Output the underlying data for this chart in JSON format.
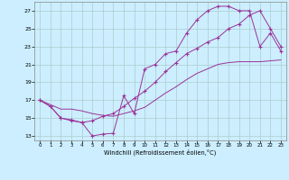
{
  "xlabel": "Windchill (Refroidissement éolien,°C)",
  "bg_color": "#cceeff",
  "grid_color": "#aacccc",
  "line_color": "#993399",
  "xlim": [
    -0.5,
    23.5
  ],
  "ylim": [
    12.5,
    28.0
  ],
  "xticks": [
    0,
    1,
    2,
    3,
    4,
    5,
    6,
    7,
    8,
    9,
    10,
    11,
    12,
    13,
    14,
    15,
    16,
    17,
    18,
    19,
    20,
    21,
    22,
    23
  ],
  "yticks": [
    13,
    15,
    17,
    19,
    21,
    23,
    25,
    27
  ],
  "series1_x": [
    0,
    1,
    2,
    3,
    4,
    5,
    6,
    7,
    8,
    9,
    10,
    11,
    12,
    13,
    14,
    15,
    16,
    17,
    18,
    19,
    20,
    21,
    22,
    23
  ],
  "series1_y": [
    17.0,
    16.3,
    15.0,
    14.8,
    14.5,
    13.0,
    13.2,
    13.3,
    17.5,
    15.5,
    20.5,
    21.0,
    22.2,
    22.5,
    24.5,
    26.0,
    27.0,
    27.5,
    27.5,
    27.0,
    27.0,
    23.0,
    24.5,
    22.5
  ],
  "series2_x": [
    0,
    1,
    2,
    3,
    4,
    5,
    6,
    7,
    8,
    9,
    10,
    11,
    12,
    13,
    14,
    15,
    16,
    17,
    18,
    19,
    20,
    21,
    22,
    23
  ],
  "series2_y": [
    17.0,
    16.3,
    15.0,
    14.7,
    14.5,
    14.7,
    15.2,
    15.5,
    16.3,
    17.2,
    18.0,
    19.0,
    20.2,
    21.2,
    22.2,
    22.8,
    23.5,
    24.0,
    25.0,
    25.5,
    26.5,
    27.0,
    25.0,
    23.0
  ],
  "series3_x": [
    0,
    1,
    2,
    3,
    4,
    5,
    6,
    7,
    8,
    9,
    10,
    11,
    12,
    13,
    14,
    15,
    16,
    17,
    18,
    19,
    20,
    21,
    22,
    23
  ],
  "series3_y": [
    17.0,
    16.5,
    16.0,
    16.0,
    15.8,
    15.5,
    15.3,
    15.2,
    15.5,
    15.8,
    16.2,
    17.0,
    17.8,
    18.5,
    19.3,
    20.0,
    20.5,
    21.0,
    21.2,
    21.3,
    21.3,
    21.3,
    21.4,
    21.5
  ]
}
